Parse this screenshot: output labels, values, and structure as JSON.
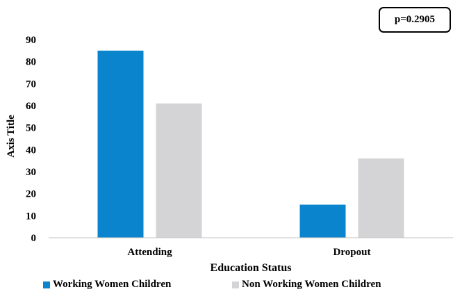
{
  "annotation": {
    "text": "p=0.2905"
  },
  "colors": {
    "working": "#0a84cc",
    "non_working": "#d4d4d6",
    "axis": "#bfbfbf",
    "text": "#000000"
  },
  "chart_data": {
    "type": "bar",
    "categories": [
      "Attending",
      "Dropout"
    ],
    "series": [
      {
        "name": "Working Women Children",
        "values": [
          85,
          15
        ]
      },
      {
        "name": "Non Working Women Children",
        "values": [
          61,
          36
        ]
      }
    ],
    "xlabel": "Education Status",
    "ylabel": "Axis Title",
    "ylim": [
      0,
      90
    ],
    "yticks": [
      0,
      10,
      20,
      30,
      40,
      50,
      60,
      70,
      80,
      90
    ],
    "grid": false,
    "legend_position": "bottom"
  }
}
